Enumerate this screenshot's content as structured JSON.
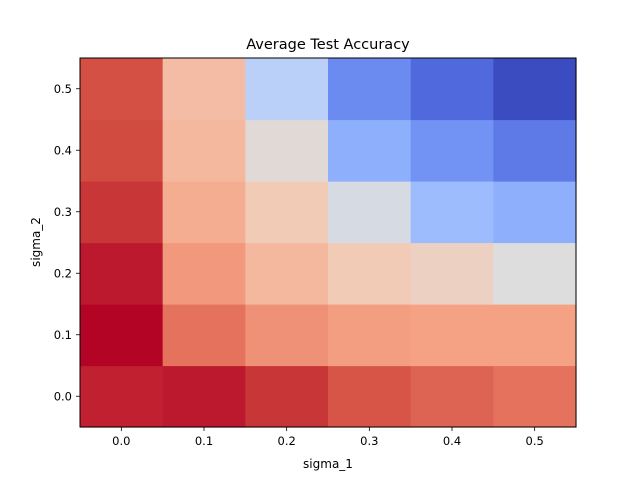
{
  "chart_data": {
    "type": "heatmap",
    "title": "Average Test Accuracy",
    "xlabel": "sigma_1",
    "ylabel": "sigma_2",
    "x": [
      0.0,
      0.1,
      0.2,
      0.3,
      0.4,
      0.5
    ],
    "y": [
      0.0,
      0.1,
      0.2,
      0.3,
      0.4,
      0.5
    ],
    "xticks": [
      "0.0",
      "0.1",
      "0.2",
      "0.3",
      "0.4",
      "0.5"
    ],
    "yticks": [
      "0.0",
      "0.1",
      "0.2",
      "0.3",
      "0.4",
      "0.5"
    ],
    "colormap": "coolwarm",
    "color_range": [
      0,
      1
    ],
    "values_normalized": [
      [
        0.96,
        0.97,
        0.93,
        0.88,
        0.85,
        0.82
      ],
      [
        1.0,
        0.82,
        0.75,
        0.72,
        0.71,
        0.71
      ],
      [
        0.97,
        0.73,
        0.65,
        0.6,
        0.57,
        0.5
      ],
      [
        0.93,
        0.68,
        0.6,
        0.48,
        0.32,
        0.28
      ],
      [
        0.9,
        0.65,
        0.52,
        0.28,
        0.2,
        0.14
      ],
      [
        0.89,
        0.64,
        0.4,
        0.18,
        0.1,
        0.0
      ]
    ],
    "grid": false
  }
}
